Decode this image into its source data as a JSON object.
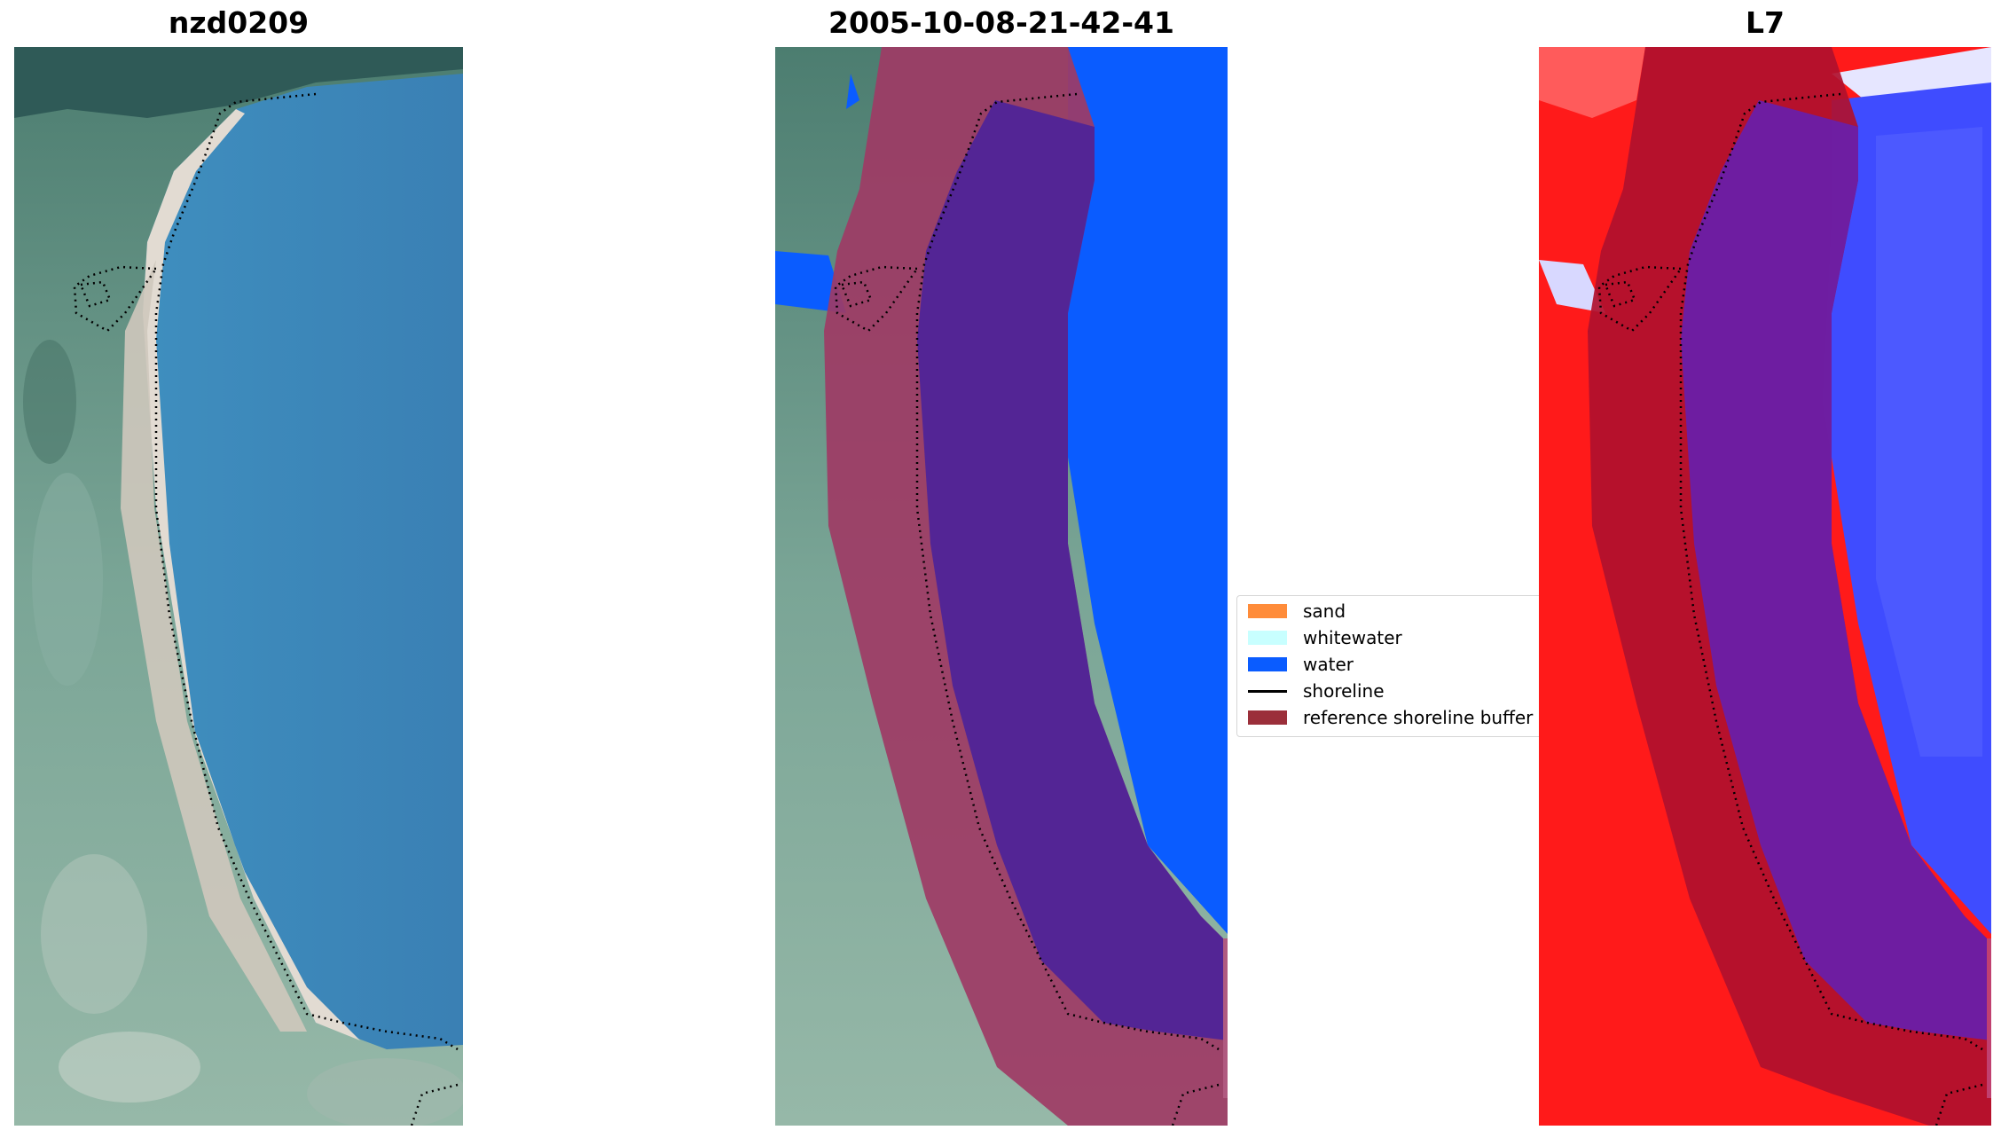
{
  "panels": [
    {
      "title": "nzd0209",
      "view": "rgb"
    },
    {
      "title": "2005-10-08-21-42-41",
      "view": "classified"
    },
    {
      "title": "L7",
      "view": "index"
    }
  ],
  "legend": {
    "entries": [
      {
        "label": "sand",
        "type": "patch",
        "color": "#ff8c3a"
      },
      {
        "label": "whitewater",
        "type": "patch",
        "color": "#c8ffff"
      },
      {
        "label": "water",
        "type": "patch",
        "color": "#0a5cff"
      },
      {
        "label": "shoreline",
        "type": "line",
        "color": "#000000"
      },
      {
        "label": "reference shoreline buffer",
        "type": "patch",
        "color": "#9b2f3a"
      }
    ]
  },
  "colors": {
    "ocean": "#3a86b8",
    "vegetation": "#5f9b8a",
    "sand": "#d8d0c4",
    "water_class": "#0a5cff",
    "buffer": "#9b2f3a",
    "index_land": "#ff1a1a",
    "index_water": "#3f4cff"
  }
}
